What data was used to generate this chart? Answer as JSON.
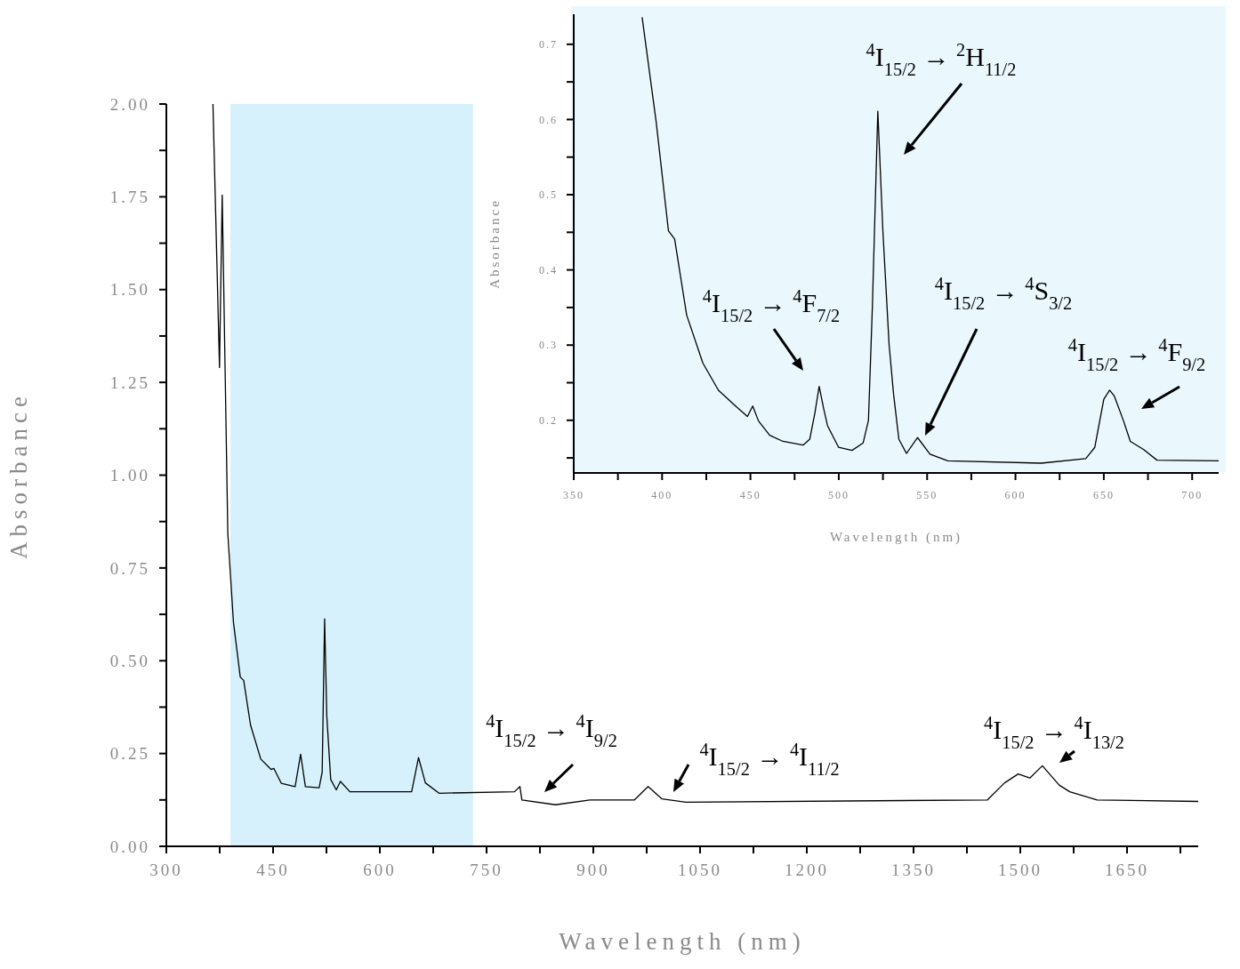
{
  "chart_data": [
    {
      "type": "line",
      "xlabel": "Wavelength (nm)",
      "ylabel": "Absorbance",
      "xlim": [
        300,
        1750
      ],
      "ylim": [
        0,
        2
      ],
      "xticks": [
        300,
        {
          "value": 375,
          "label": null
        },
        450,
        {
          "value": 525,
          "label": null
        },
        600,
        {
          "value": 675,
          "label": null
        },
        750,
        {
          "value": 825,
          "label": null
        },
        900,
        {
          "value": 975,
          "label": null
        },
        1050,
        {
          "value": 1125,
          "label": null
        },
        1200,
        {
          "value": 1275,
          "label": null
        },
        1350,
        {
          "value": 1425,
          "label": null
        },
        1500,
        {
          "value": 1575,
          "label": null
        },
        1650,
        {
          "value": 1725,
          "label": null
        }
      ],
      "yticks": [
        {
          "value": 0,
          "label": "0.00"
        },
        {
          "value": 0.125,
          "label": null
        },
        0.25,
        {
          "value": 0.375,
          "label": null
        },
        {
          "value": 0.5,
          "label": "0.50"
        },
        {
          "value": 0.625,
          "label": null
        },
        0.75,
        {
          "value": 0.875,
          "label": null
        },
        {
          "value": 1,
          "label": "1.00"
        },
        {
          "value": 1.125,
          "label": null
        },
        1.25,
        {
          "value": 1.375,
          "label": null
        },
        {
          "value": 1.5,
          "label": "1.50"
        },
        {
          "value": 1.625,
          "label": null
        },
        1.75,
        {
          "value": 1.875,
          "label": null
        },
        {
          "value": 2,
          "label": "2.00"
        }
      ],
      "series": [
        {
          "color": "#000000",
          "x": [
            365.5,
            374.7,
            378.5,
            386.4,
            394.3,
            403.9,
            408.7,
            418.3,
            432.7,
            447.2,
            451,
            461.5,
            481,
            488.7,
            495.4,
            514.7,
            519,
            522.4,
            525.5,
            531,
            538.8,
            544.6,
            558,
            644.7,
            654.4,
            664,
            683.2,
            789.2,
            796.9,
            799.6,
            846.9,
            895.2,
            957.8,
            977,
            996.2,
            1030,
            1453.9,
            1477.9,
            1497.1,
            1513.4,
            1531,
            1554.7,
            1569.5,
            1608,
            1750
          ],
          "values": [
            2.0,
            1.29,
            1.755,
            0.843,
            0.604,
            0.456,
            0.447,
            0.327,
            0.235,
            0.207,
            0.21,
            0.17,
            0.161,
            0.248,
            0.161,
            0.158,
            0.2,
            0.613,
            0.35,
            0.18,
            0.152,
            0.175,
            0.147,
            0.147,
            0.239,
            0.171,
            0.143,
            0.147,
            0.161,
            0.125,
            0.112,
            0.125,
            0.125,
            0.161,
            0.128,
            0.119,
            0.125,
            0.171,
            0.195,
            0.184,
            0.217,
            0.165,
            0.147,
            0.125,
            0.121
          ]
        }
      ],
      "bands": [
        {
          "axis": "x",
          "from": 390,
          "to": 731,
          "color": "#d6f1fb"
        }
      ],
      "annotations": [
        "$^{4}$I$_{15/2}$ → $^{4}$I$_{9/2}$",
        "$^{4}$I$_{15/2}$ → $^{4}$I$_{11/2}$",
        "$^{4}$I$_{15/2}$ → $^{4}$I$_{13/2}$"
      ]
    },
    {
      "type": "line",
      "xlabel": "Wavelength (nm)",
      "ylabel": "Absorbance",
      "xlim": [
        350,
        715
      ],
      "ylim": [
        0.13,
        0.74
      ],
      "xticks": [
        350,
        {
          "value": 375,
          "label": null
        },
        400,
        {
          "value": 425,
          "label": null
        },
        450,
        {
          "value": 475,
          "label": null
        },
        500,
        {
          "value": 525,
          "label": null
        },
        550,
        {
          "value": 575,
          "label": null
        },
        600,
        {
          "value": 625,
          "label": null
        },
        650,
        {
          "value": 675,
          "label": null
        },
        700
      ],
      "yticks": [
        {
          "value": 0.15,
          "label": null
        },
        0.2,
        {
          "value": 0.25,
          "label": null
        },
        0.3,
        {
          "value": 0.35,
          "label": null
        },
        0.4,
        {
          "value": 0.45,
          "label": null
        },
        0.5,
        {
          "value": 0.55,
          "label": null
        },
        0.6,
        {
          "value": 0.65,
          "label": null
        },
        0.7
      ],
      "series": [
        {
          "color": "#000000",
          "x": [
            388.7,
            396.7,
            403.6,
            407.1,
            413.9,
            423.1,
            431.9,
            442,
            448.3,
            451.3,
            454.6,
            460.9,
            468.4,
            479.8,
            483.6,
            486.5,
            488.9,
            491.5,
            493.6,
            499.9,
            507.5,
            513.8,
            516.8,
            519,
            522.1,
            525,
            528.5,
            531,
            534,
            538.3,
            544.6,
            551.6,
            561.7,
            614.6,
            639.8,
            644.9,
            650,
            653.3,
            656,
            661.2,
            665,
            672.6,
            680.1,
            715
          ],
          "values": [
            0.736,
            0.596,
            0.452,
            0.441,
            0.34,
            0.276,
            0.24,
            0.218,
            0.205,
            0.219,
            0.199,
            0.18,
            0.172,
            0.167,
            0.175,
            0.21,
            0.245,
            0.215,
            0.193,
            0.164,
            0.16,
            0.17,
            0.2,
            0.35,
            0.611,
            0.45,
            0.3,
            0.235,
            0.175,
            0.156,
            0.177,
            0.155,
            0.146,
            0.143,
            0.149,
            0.164,
            0.228,
            0.24,
            0.232,
            0.199,
            0.172,
            0.161,
            0.147,
            0.146
          ]
        }
      ],
      "annotations": [
        "$^{4}$I$_{15/2}$ → $^{2}$H$_{11/2}$",
        "$^{4}$I$_{15/2}$ → $^{4}$F$_{7/2}$",
        "$^{4}$I$_{15/2}$ → $^{4}$S$_{3/2}$",
        "$^{4}$I$_{15/2}$ → $^{4}$F$_{9/2}$"
      ]
    }
  ]
}
